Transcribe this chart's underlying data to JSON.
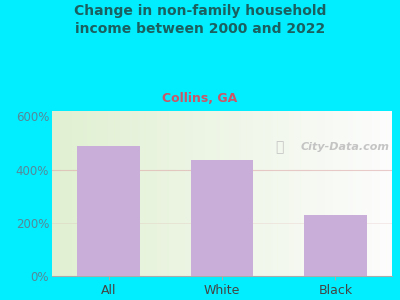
{
  "title": "Change in non-family household\nincome between 2000 and 2022",
  "subtitle": "Collins, GA",
  "categories": [
    "All",
    "White",
    "Black"
  ],
  "values": [
    490,
    435,
    230
  ],
  "bar_color": "#c8aed8",
  "title_color": "#1a6060",
  "subtitle_color": "#cc5566",
  "ytick_labels": [
    "0%",
    "200%",
    "400%",
    "600%"
  ],
  "ytick_values": [
    0,
    200,
    400,
    600
  ],
  "ylim": [
    0,
    620
  ],
  "bg_color": "#00eeff",
  "watermark": "City-Data.com",
  "watermark_color": "#bbbbbb",
  "xlabel_color": "#444444",
  "ytick_color": "#558899",
  "grid_color": "#ddaaaa",
  "grid_alpha": 0.6
}
